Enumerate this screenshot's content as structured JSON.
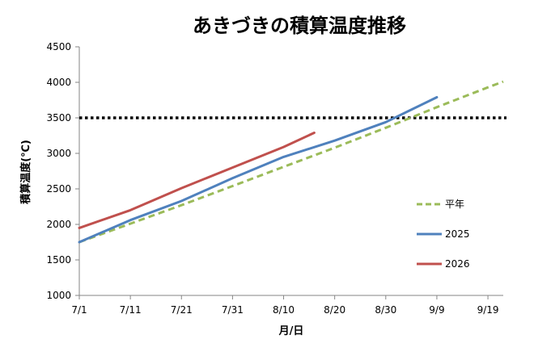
{
  "chart_data": {
    "type": "line",
    "title": "あきづきの積算温度推移",
    "xlabel": "月/日",
    "ylabel": "積算温度(℃)",
    "x_ticks": [
      "7/1",
      "7/11",
      "7/21",
      "7/31",
      "8/10",
      "8/20",
      "8/30",
      "9/9",
      "9/19"
    ],
    "x_range": [
      "7/1",
      "9/22"
    ],
    "ylim": [
      1000,
      4500
    ],
    "y_ticks": [
      1000,
      1500,
      2000,
      2500,
      3000,
      3500,
      4000,
      4500
    ],
    "grid": false,
    "legend_position": "right",
    "threshold": {
      "value": 3500,
      "style": "dotted",
      "color": "#000000"
    },
    "series": [
      {
        "name": "平年",
        "color": "#9bbb59",
        "dash": true,
        "x": [
          "7/1",
          "7/11",
          "7/21",
          "7/31",
          "8/10",
          "8/20",
          "8/30",
          "9/9",
          "9/19",
          "9/22"
        ],
        "y": [
          1750,
          2010,
          2270,
          2540,
          2810,
          3080,
          3360,
          3650,
          3930,
          4010
        ]
      },
      {
        "name": "2025",
        "color": "#4f81bd",
        "dash": false,
        "x": [
          "7/1",
          "7/11",
          "7/21",
          "7/31",
          "8/10",
          "8/20",
          "8/30",
          "9/9"
        ],
        "y": [
          1750,
          2060,
          2330,
          2650,
          2950,
          3180,
          3440,
          3790
        ]
      },
      {
        "name": "2026",
        "color": "#c0504d",
        "dash": false,
        "x": [
          "7/1",
          "7/11",
          "7/21",
          "7/31",
          "8/10",
          "8/16"
        ],
        "y": [
          1950,
          2200,
          2510,
          2800,
          3090,
          3290
        ]
      }
    ]
  }
}
